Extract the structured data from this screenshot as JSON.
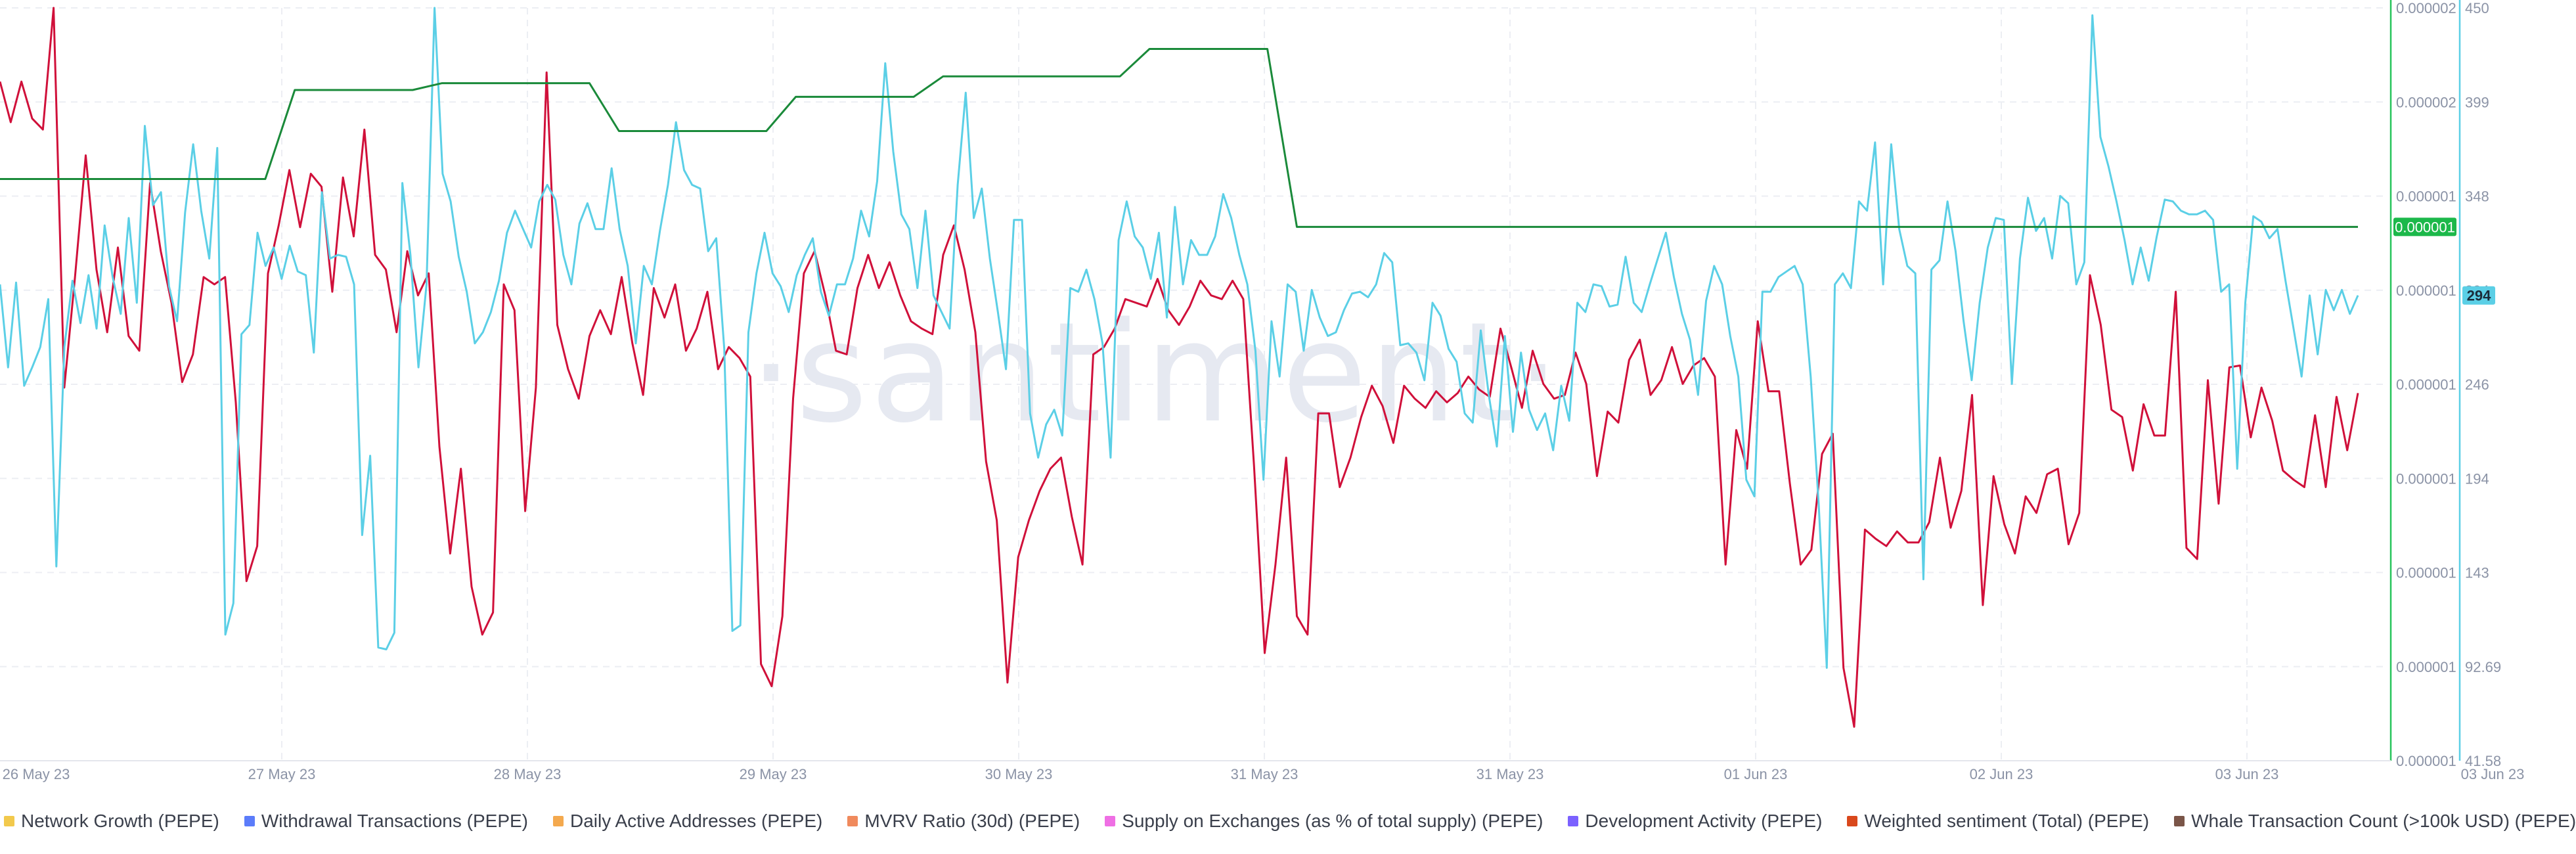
{
  "watermark": "·santiment·",
  "chart_data": {
    "type": "line",
    "x_tick_labels": [
      "26 May 23",
      "27 May 23",
      "28 May 23",
      "29 May 23",
      "30 May 23",
      "31 May 23",
      "31 May 23",
      "01 Jun 23",
      "02 Jun 23",
      "03 Jun 23",
      "03 Jun 23"
    ],
    "y_axis_left": {
      "tick_labels": [
        "0.000002",
        "0.000002",
        "0.000001",
        "0.000001",
        "0.000001",
        "0.000001",
        "0.000001",
        "0.000001",
        "0.000001"
      ],
      "current_value_badge": "0.000001"
    },
    "y_axis_right": {
      "tick_labels": [
        "450",
        "399",
        "348",
        "294",
        "246",
        "194",
        "143",
        "92.69",
        "41.58"
      ],
      "range": [
        41.58,
        450
      ],
      "current_value_badge": "294"
    },
    "series": [
      {
        "color": "#d0103a",
        "axis": "right",
        "values": [
          410,
          388,
          410,
          390,
          384,
          450,
          244,
          304,
          370,
          308,
          274,
          320,
          272,
          264,
          355,
          318,
          290,
          247,
          262,
          304,
          300,
          304,
          236,
          139,
          158,
          306,
          332,
          362,
          331,
          360,
          353,
          296,
          358,
          326,
          384,
          316,
          308,
          274,
          318,
          294,
          306,
          212,
          154,
          200,
          136,
          110,
          122,
          300,
          286,
          177,
          244,
          415,
          278,
          254,
          238,
          272,
          286,
          273,
          304,
          268,
          240,
          298,
          282,
          300,
          264,
          276,
          296,
          254,
          266,
          260,
          250,
          94,
          82,
          120,
          238,
          306,
          318,
          294,
          264,
          262,
          298,
          316,
          298,
          312,
          294,
          280,
          276,
          273,
          316,
          332,
          308,
          274,
          204,
          172,
          84,
          152,
          172,
          188,
          200,
          206,
          174,
          148,
          262,
          266,
          276,
          292,
          290,
          288,
          303,
          286,
          278,
          288,
          302,
          294,
          292,
          302,
          292,
          202,
          100,
          148,
          206,
          120,
          110,
          230,
          230,
          190,
          206,
          228,
          245,
          234,
          214,
          245,
          238,
          233,
          242,
          236,
          241,
          250,
          243,
          239,
          276,
          255,
          233,
          264,
          246,
          238,
          240,
          263,
          246,
          196,
          231,
          225,
          259,
          270,
          240,
          248,
          266,
          246,
          256,
          260,
          250,
          148,
          221,
          200,
          280,
          242,
          242,
          192,
          148,
          156,
          208,
          219,
          92,
          60,
          167,
          162,
          158,
          166,
          160,
          160,
          171,
          206,
          168,
          188,
          240,
          126,
          196,
          170,
          154,
          185,
          176,
          197,
          200,
          159,
          176,
          305,
          278,
          232,
          228,
          199,
          235,
          218,
          218,
          296,
          157,
          151,
          248,
          181,
          255,
          256,
          217,
          244,
          226,
          199,
          194,
          190,
          229,
          190,
          239,
          210,
          241
        ]
      },
      {
        "color": "#5bcfe6",
        "axis": "right",
        "values": [
          300,
          255,
          301,
          245,
          255,
          266,
          292,
          147,
          266,
          302,
          279,
          305,
          276,
          332,
          304,
          284,
          336,
          290,
          386,
          343,
          350,
          299,
          280,
          339,
          376,
          340,
          314,
          374,
          110,
          127,
          273,
          278,
          328,
          310,
          320,
          303,
          321,
          307,
          305,
          263,
          350,
          314,
          316,
          315,
          300,
          164,
          207,
          103,
          102,
          111,
          355,
          316,
          255,
          300,
          450,
          360,
          345,
          315,
          296,
          268,
          274,
          285,
          302,
          328,
          340,
          330,
          320,
          345,
          354,
          346,
          316,
          300,
          333,
          344,
          330,
          330,
          363,
          330,
          310,
          268,
          310,
          300,
          329,
          354,
          388,
          362,
          354,
          352,
          318,
          325,
          265,
          112,
          115,
          274,
          306,
          328,
          306,
          299,
          285,
          305,
          316,
          325,
          296,
          283,
          300,
          300,
          314,
          340,
          326,
          356,
          420,
          372,
          338,
          330,
          298,
          340,
          294,
          285,
          276,
          354,
          404,
          336,
          352,
          314,
          285,
          254,
          335,
          335,
          230,
          206,
          224,
          232,
          218,
          298,
          296,
          308,
          292,
          268,
          206,
          324,
          345,
          326,
          320,
          303,
          328,
          282,
          342,
          300,
          324,
          316,
          316,
          326,
          349,
          336,
          316,
          300,
          264,
          194,
          280,
          250,
          300,
          296,
          264,
          297,
          282,
          272,
          274,
          286,
          295,
          296,
          293,
          300,
          317,
          312,
          267,
          268,
          263,
          248,
          290,
          283,
          265,
          258,
          230,
          225,
          275,
          240,
          212,
          272,
          220,
          263,
          232,
          221,
          230,
          210,
          245,
          226,
          290,
          285,
          300,
          299,
          288,
          289,
          315,
          290,
          285,
          300,
          314,
          328,
          304,
          284,
          270,
          240,
          291,
          310,
          300,
          272,
          250,
          194,
          185,
          296,
          296,
          304,
          307,
          310,
          300,
          250,
          180,
          92,
          300,
          306,
          298,
          345,
          340,
          377,
          300,
          376,
          330,
          310,
          306,
          140,
          308,
          313,
          345,
          318,
          280,
          248,
          290,
          320,
          336,
          335,
          246,
          314,
          347,
          329,
          336,
          314,
          348,
          344,
          300,
          312,
          446,
          380,
          364,
          345,
          324,
          300,
          320,
          302,
          326,
          346,
          345,
          340,
          338,
          338,
          340,
          335,
          296,
          300,
          200,
          290,
          337,
          334,
          325,
          330,
          302,
          276,
          250,
          294,
          262,
          297,
          286,
          297,
          284,
          294
        ]
      },
      {
        "color": "#1a8a3a",
        "axis": "left",
        "values": [
          0.85,
          0.85,
          0.85,
          0.85,
          0.85,
          0.85,
          0.85,
          0.85,
          0.85,
          0.85,
          0.98,
          0.98,
          0.98,
          0.98,
          0.98,
          0.99,
          0.99,
          0.99,
          0.99,
          0.99,
          0.99,
          0.92,
          0.92,
          0.92,
          0.92,
          0.92,
          0.92,
          0.97,
          0.97,
          0.97,
          0.97,
          0.97,
          1.0,
          1.0,
          1.0,
          1.0,
          1.0,
          1.0,
          1.0,
          1.04,
          1.04,
          1.04,
          1.04,
          1.04,
          0.78,
          0.78,
          0.78,
          0.78,
          0.78,
          0.78,
          0.78,
          0.78,
          0.78,
          0.78,
          0.78,
          0.78,
          0.78,
          0.78,
          0.78,
          0.78,
          0.78,
          0.78,
          0.78,
          0.78,
          0.78,
          0.78,
          0.78,
          0.78,
          0.78,
          0.78,
          0.78,
          0.78,
          0.78,
          0.78,
          0.78,
          0.78,
          0.78,
          0.78,
          0.78,
          0.78,
          0.78
        ]
      }
    ]
  },
  "legend": [
    {
      "label": "Network Growth (PEPE)",
      "color": "#f2c94c"
    },
    {
      "label": "Withdrawal Transactions (PEPE)",
      "color": "#5b7cfa"
    },
    {
      "label": "Daily Active Addresses (PEPE)",
      "color": "#f4a94e"
    },
    {
      "label": "MVRV Ratio (30d) (PEPE)",
      "color": "#f08a5d"
    },
    {
      "label": "Supply on Exchanges (as % of total supply) (PEPE)",
      "color": "#ef6fe4"
    },
    {
      "label": "Development Activity (PEPE)",
      "color": "#7b61ff"
    },
    {
      "label": "Weighted sentiment (Total) (PEPE)",
      "color": "#d9481c"
    },
    {
      "label": "Whale Transaction Count (>100k USD) (PEPE)",
      "color": "#7a5548"
    }
  ]
}
